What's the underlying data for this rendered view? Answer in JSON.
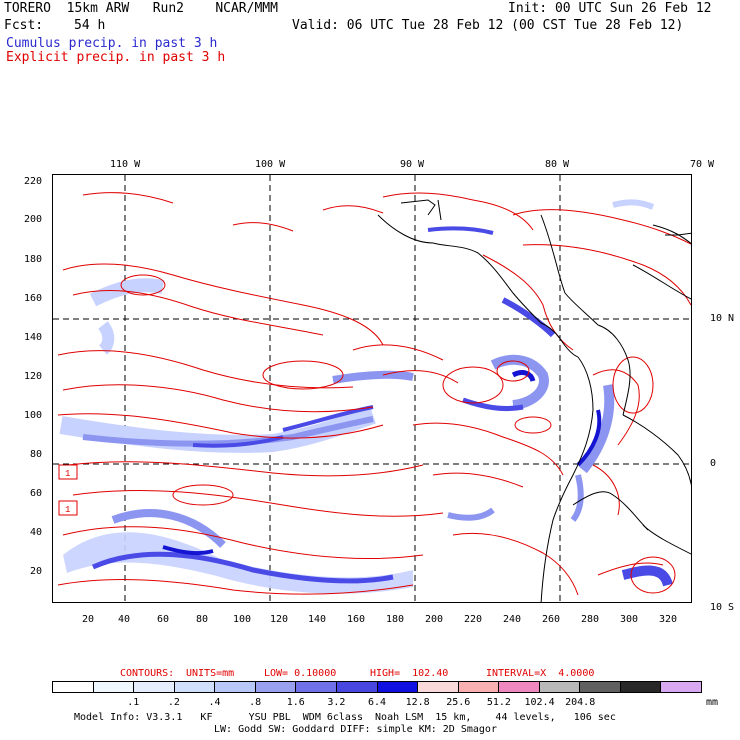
{
  "header": {
    "line1_left": "TORERO  15km ARW   Run2    NCAR/MMM",
    "line1_right": "Init: 00 UTC Sun 26 Feb 12",
    "line2_left_label": "Fcst:",
    "line2_left_value": "54 h",
    "line2_right": "Valid: 06 UTC Tue 28 Feb 12 (00 CST Tue 28 Feb 12)",
    "cumulus_label": "Cumulus precip. in past 3 h",
    "explicit_label": "Explicit precip. in past 3 h",
    "cumulus_color": "#2a2ad0",
    "explicit_color": "#e00000"
  },
  "map": {
    "lon_labels": [
      "110 W",
      "100 W",
      "90 W",
      "80 W",
      "70 W"
    ],
    "lat_labels": [
      "10 N",
      "0",
      "10 S"
    ],
    "y_ticks": [
      "220",
      "200",
      "180",
      "160",
      "140",
      "120",
      "100",
      "80",
      "60",
      "40",
      "20"
    ],
    "x_ticks": [
      "20",
      "40",
      "60",
      "80",
      "100",
      "120",
      "140",
      "160",
      "180",
      "200",
      "220",
      "240",
      "260",
      "280",
      "300",
      "320"
    ],
    "box_labels": [
      "1",
      "1"
    ],
    "contour_color": "#e00000",
    "shade_colors": [
      "#c8d2ff",
      "#8c96f0",
      "#4a4ae6",
      "#1414d2"
    ]
  },
  "contours_line": {
    "label": "CONTOURS:",
    "units": "UNITS=mm",
    "low": "LOW= 0.10000",
    "high": "HIGH=  102.40",
    "interval": "INTERVAL=X  4.0000"
  },
  "legend": {
    "colors": [
      "#ffffff",
      "#f0f8ff",
      "#e4eefc",
      "#d0e0fc",
      "#b8c8f8",
      "#9aa0f0",
      "#7070e8",
      "#4848e0",
      "#1010e0",
      "#f8d8d8",
      "#f8b0b0",
      "#f088c0",
      "#b8b8b8",
      "#606060",
      "#282828",
      "#d8a8f0"
    ],
    "labels": [
      ".1",
      ".2",
      ".4",
      ".8",
      "1.6",
      "3.2",
      "6.4",
      "12.8",
      "25.6",
      "51.2",
      "102.4",
      "204.8"
    ],
    "unit": "mm"
  },
  "footer": {
    "line1": "Model Info: V3.3.1   KF      YSU PBL  WDM 6class  Noah LSM  15 km,    44 levels,   106 sec",
    "line2": "LW: Godd SW: Goddard DIFF: simple KM: 2D Smagor"
  }
}
